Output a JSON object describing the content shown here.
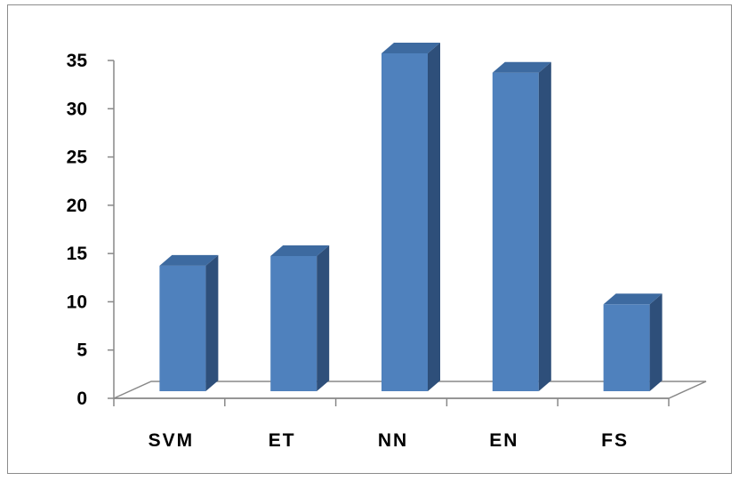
{
  "chart_data": {
    "type": "bar",
    "title": "",
    "xlabel": "",
    "ylabel": "",
    "categories": [
      "SVM",
      "ET",
      "NN",
      "EN",
      "FS"
    ],
    "values": [
      13,
      14,
      35,
      33,
      9
    ],
    "ylim": [
      0,
      35
    ],
    "yticks": [
      "0",
      "5",
      "10",
      "15",
      "20",
      "25",
      "30",
      "35"
    ],
    "grid": false,
    "legend": "none",
    "bar_color": "#4f81bd",
    "bar_side_color": "#2e4f7a",
    "bar_top_color": "#3d6aa0",
    "axis_color": "#888888"
  }
}
